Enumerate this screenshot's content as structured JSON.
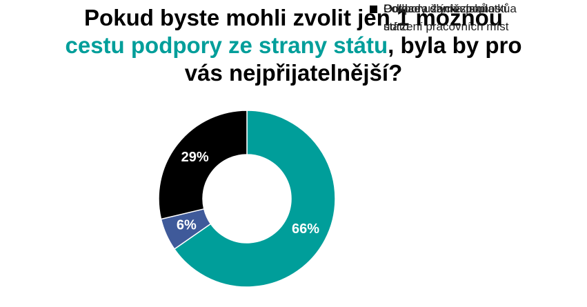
{
  "chart_data": {
    "type": "donut",
    "title_lines": [
      [
        {
          "text": "Pokud byste mohli zvolit jen 1 možnou",
          "color": "#000000"
        }
      ],
      [
        {
          "text": "cestu podpory ze strany státu",
          "color": "#009e9a"
        },
        {
          "text": ", byla by pro",
          "color": "#000000"
        }
      ],
      [
        {
          "text": "vás nejpřijatelnější?",
          "color": "#000000"
        }
      ]
    ],
    "categories": [
      "Podpora zaměstnanosti a udržení pracovních míst",
      "Dotace ušlých zisků",
      "Odklady daní a poplatků státu"
    ],
    "values": [
      66,
      6,
      29
    ],
    "value_labels": [
      "66%",
      "6%",
      "29%"
    ],
    "colors": [
      "#009e9a",
      "#3f5a9a",
      "#000000"
    ],
    "legend": "right"
  }
}
